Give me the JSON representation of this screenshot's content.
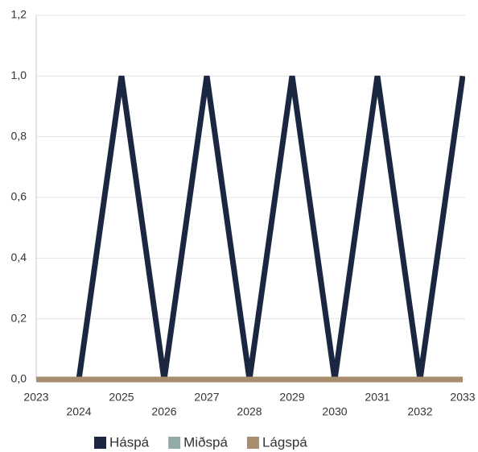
{
  "chart_data": {
    "type": "line",
    "categories": [
      "2023",
      "2024",
      "2025",
      "2026",
      "2027",
      "2028",
      "2029",
      "2030",
      "2031",
      "2032",
      "2033"
    ],
    "series": [
      {
        "name": "Háspá",
        "color": "#1b2740",
        "values": [
          null,
          0,
          1,
          0,
          1,
          0,
          1,
          0,
          1,
          0,
          1
        ]
      },
      {
        "name": "Miðspá",
        "color": "#93aaa6",
        "values": [
          0,
          0,
          0,
          0,
          0,
          0,
          0,
          0,
          0,
          0,
          0
        ]
      },
      {
        "name": "Lágspá",
        "color": "#a88e6e",
        "values": [
          0,
          0,
          0,
          0,
          0,
          0,
          0,
          0,
          0,
          0,
          0
        ]
      }
    ],
    "ylim": [
      0,
      1.2
    ],
    "yticks": [
      {
        "value": 0,
        "label": "0,0"
      },
      {
        "value": 0.2,
        "label": "0,2"
      },
      {
        "value": 0.4,
        "label": "0,4"
      },
      {
        "value": 0.6,
        "label": "0,6"
      },
      {
        "value": 0.8,
        "label": "0,8"
      },
      {
        "value": 1.0,
        "label": "1,0"
      },
      {
        "value": 1.2,
        "label": "1,2"
      }
    ],
    "grid": true,
    "legend": "bottom"
  }
}
